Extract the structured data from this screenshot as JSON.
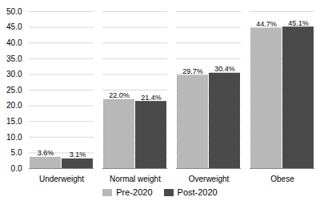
{
  "chart_data": {
    "type": "bar",
    "categories": [
      "Underweight",
      "Normal weight",
      "Overweight",
      "Obese"
    ],
    "series": [
      {
        "name": "Pre-2020",
        "color": "#b8b8b8",
        "values": [
          3.6,
          22.0,
          29.7,
          44.7
        ],
        "value_labels": [
          "3.6%",
          "22.0%",
          "29.7%",
          "44.7%"
        ]
      },
      {
        "name": "Post-2020",
        "color": "#4a4a4a",
        "values": [
          3.1,
          21.4,
          30.4,
          45.1
        ],
        "value_labels": [
          "3.1%",
          "21.4%",
          "30.4%",
          "45.1%"
        ]
      }
    ],
    "ylim": [
      0,
      50
    ],
    "yticks": [
      {
        "value": 0,
        "label": "0.0"
      },
      {
        "value": 5,
        "label": "5.0"
      },
      {
        "value": 10,
        "label": "10.0"
      },
      {
        "value": 15,
        "label": "15.0"
      },
      {
        "value": 20,
        "label": "20.0"
      },
      {
        "value": 25,
        "label": "25.0"
      },
      {
        "value": 30,
        "label": "30.0"
      },
      {
        "value": 35,
        "label": "35.0"
      },
      {
        "value": 40,
        "label": "40.0"
      },
      {
        "value": 45,
        "label": "45.0"
      },
      {
        "value": 50,
        "label": "50.0"
      }
    ],
    "grid": true,
    "legend": "bottom",
    "data_labels": true
  }
}
